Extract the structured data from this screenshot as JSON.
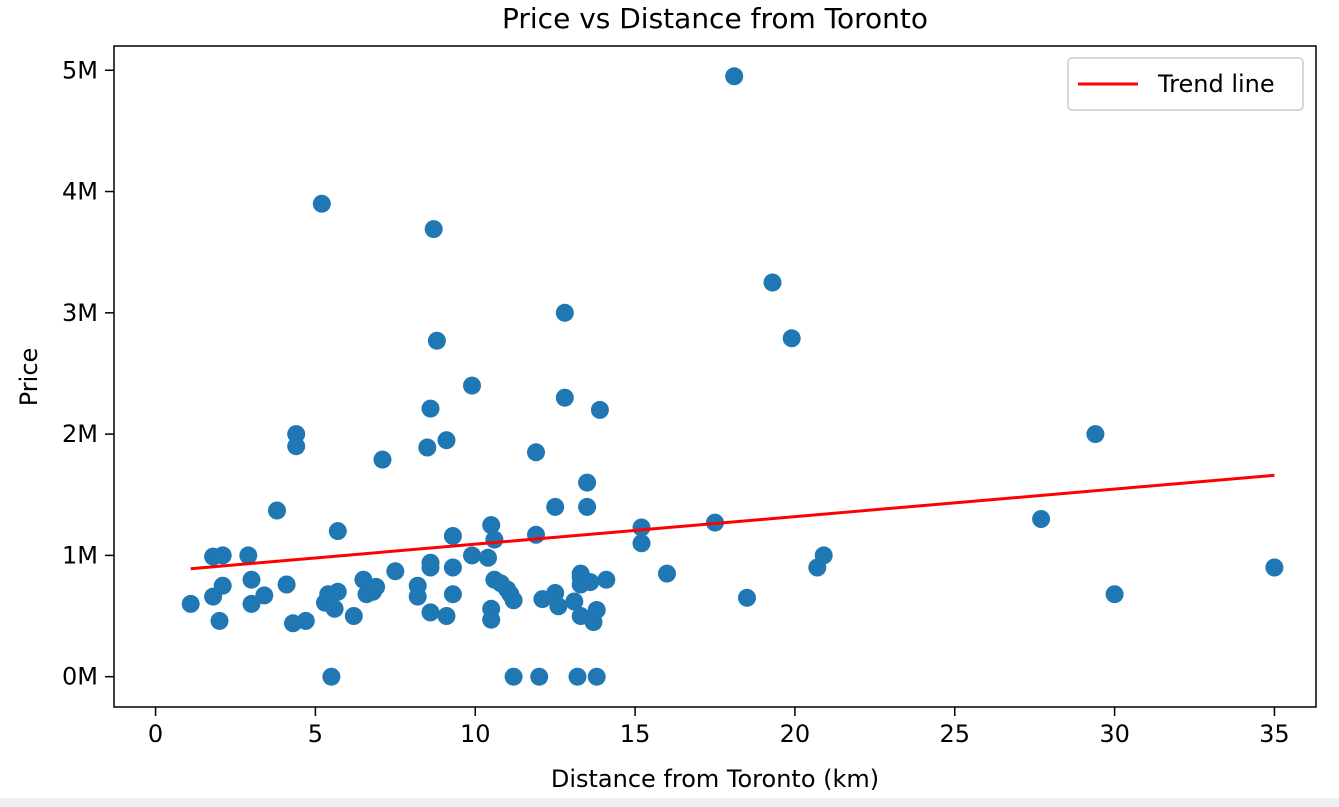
{
  "chart_data": {
    "type": "scatter",
    "title": "Price vs Distance from Toronto",
    "xlabel": "Distance from Toronto (km)",
    "ylabel": "Price",
    "xlim": [
      -1.3,
      36.3
    ],
    "ylim": [
      -250000,
      5200000
    ],
    "x_ticks": [
      0,
      5,
      10,
      15,
      20,
      25,
      30,
      35
    ],
    "x_tick_labels": [
      "0",
      "5",
      "10",
      "15",
      "20",
      "25",
      "30",
      "35"
    ],
    "y_ticks": [
      0,
      1000000,
      2000000,
      3000000,
      4000000,
      5000000
    ],
    "y_tick_labels": [
      "0M",
      "1M",
      "2M",
      "3M",
      "4M",
      "5M"
    ],
    "grid": false,
    "legend": {
      "placement": "upper-right",
      "entries": [
        "Trend line"
      ]
    },
    "series": [
      {
        "kind": "scatter",
        "color": "#1f77b4",
        "points": [
          [
            1.1,
            600000
          ],
          [
            1.8,
            990000
          ],
          [
            1.8,
            660000
          ],
          [
            2.1,
            1000000
          ],
          [
            2.1,
            750000
          ],
          [
            2.0,
            460000
          ],
          [
            2.9,
            1000000
          ],
          [
            3.0,
            800000
          ],
          [
            3.0,
            600000
          ],
          [
            3.4,
            670000
          ],
          [
            3.8,
            1370000
          ],
          [
            4.1,
            760000
          ],
          [
            4.3,
            440000
          ],
          [
            4.4,
            2000000
          ],
          [
            4.4,
            1900000
          ],
          [
            4.7,
            460000
          ],
          [
            5.2,
            3900000
          ],
          [
            5.3,
            610000
          ],
          [
            5.4,
            680000
          ],
          [
            5.5,
            0
          ],
          [
            5.6,
            560000
          ],
          [
            5.7,
            1200000
          ],
          [
            5.7,
            700000
          ],
          [
            6.2,
            500000
          ],
          [
            6.5,
            800000
          ],
          [
            6.6,
            680000
          ],
          [
            6.8,
            700000
          ],
          [
            6.9,
            740000
          ],
          [
            7.1,
            1790000
          ],
          [
            7.5,
            870000
          ],
          [
            8.2,
            750000
          ],
          [
            8.2,
            660000
          ],
          [
            8.5,
            1890000
          ],
          [
            8.6,
            530000
          ],
          [
            8.6,
            900000
          ],
          [
            8.6,
            940000
          ],
          [
            8.6,
            2210000
          ],
          [
            8.7,
            3690000
          ],
          [
            8.8,
            2770000
          ],
          [
            9.1,
            1950000
          ],
          [
            9.1,
            500000
          ],
          [
            9.3,
            1160000
          ],
          [
            9.3,
            900000
          ],
          [
            9.3,
            680000
          ],
          [
            9.9,
            2400000
          ],
          [
            9.9,
            1000000
          ],
          [
            10.4,
            980000
          ],
          [
            10.5,
            1250000
          ],
          [
            10.5,
            560000
          ],
          [
            10.5,
            470000
          ],
          [
            10.6,
            1130000
          ],
          [
            10.6,
            800000
          ],
          [
            10.8,
            770000
          ],
          [
            11.0,
            720000
          ],
          [
            11.1,
            680000
          ],
          [
            11.2,
            0
          ],
          [
            11.2,
            630000
          ],
          [
            11.9,
            1850000
          ],
          [
            11.9,
            1170000
          ],
          [
            12.0,
            0
          ],
          [
            12.1,
            640000
          ],
          [
            12.5,
            1400000
          ],
          [
            12.5,
            690000
          ],
          [
            12.6,
            580000
          ],
          [
            12.8,
            3000000
          ],
          [
            12.8,
            2300000
          ],
          [
            13.1,
            620000
          ],
          [
            13.2,
            0
          ],
          [
            13.3,
            850000
          ],
          [
            13.3,
            820000
          ],
          [
            13.3,
            760000
          ],
          [
            13.3,
            500000
          ],
          [
            13.5,
            1600000
          ],
          [
            13.5,
            1400000
          ],
          [
            13.6,
            780000
          ],
          [
            13.7,
            450000
          ],
          [
            13.8,
            0
          ],
          [
            13.8,
            550000
          ],
          [
            13.9,
            2200000
          ],
          [
            14.1,
            800000
          ],
          [
            15.2,
            1230000
          ],
          [
            15.2,
            1100000
          ],
          [
            16.0,
            850000
          ],
          [
            17.5,
            1270000
          ],
          [
            18.1,
            4950000
          ],
          [
            18.5,
            650000
          ],
          [
            19.3,
            3250000
          ],
          [
            19.9,
            2790000
          ],
          [
            20.7,
            900000
          ],
          [
            20.9,
            1000000
          ],
          [
            27.7,
            1300000
          ],
          [
            29.4,
            2000000
          ],
          [
            30.0,
            680000
          ],
          [
            35.0,
            900000
          ]
        ]
      },
      {
        "kind": "line",
        "name": "Trend line",
        "color": "#ff0000",
        "points": [
          [
            1.1,
            890000
          ],
          [
            35.0,
            1660000
          ]
        ]
      }
    ]
  }
}
